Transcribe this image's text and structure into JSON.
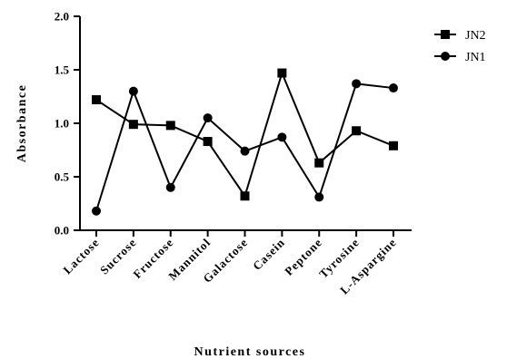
{
  "chart_data": {
    "type": "line",
    "title": "",
    "xlabel": "Nutrient sources",
    "ylabel": "Absorbance",
    "ylim": [
      0,
      2.0
    ],
    "yticks": [
      "0.0",
      "0.5",
      "1.0",
      "1.5",
      "2.0"
    ],
    "categories": [
      "Lactose",
      "Sucrose",
      "Fructose",
      "Mannitol",
      "Galactose",
      "Casein",
      "Peptone",
      "Tyrosine",
      "L-Aspargine"
    ],
    "series": [
      {
        "name": "JN2",
        "marker": "square",
        "color": "#000000",
        "values": [
          1.22,
          0.99,
          0.98,
          0.83,
          0.32,
          1.47,
          0.63,
          0.93,
          0.79
        ]
      },
      {
        "name": "JN1",
        "marker": "circle",
        "color": "#000000",
        "values": [
          0.18,
          1.3,
          0.4,
          1.05,
          0.74,
          0.87,
          0.31,
          1.37,
          1.33
        ]
      }
    ],
    "grid": false,
    "legend_position": "top-right"
  }
}
